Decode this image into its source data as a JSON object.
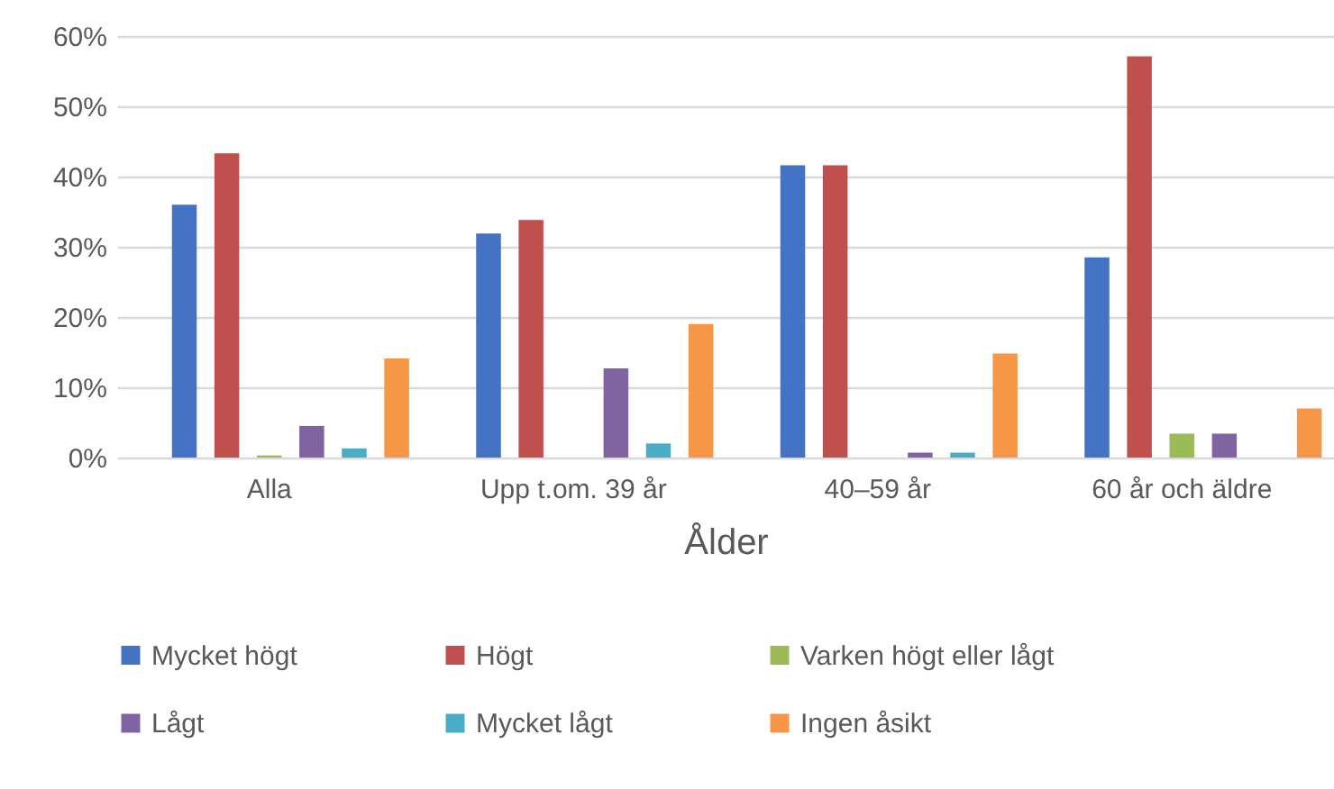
{
  "chart_data": {
    "type": "bar",
    "xlabel": "Ålder",
    "categories": [
      "Alla",
      "Upp t.om. 39 år",
      "40–59 år",
      "60 år och äldre"
    ],
    "series": [
      {
        "name": "Mycket högt",
        "color": "#4472c4",
        "values": [
          36.0,
          31.9,
          41.6,
          28.5
        ]
      },
      {
        "name": "Högt",
        "color": "#c0504d",
        "values": [
          43.3,
          33.8,
          41.6,
          57.1
        ]
      },
      {
        "name": "Varken högt eller lågt",
        "color": "#9bbb59",
        "values": [
          0.3,
          null,
          null,
          3.4
        ]
      },
      {
        "name": "Lågt",
        "color": "#8064a2",
        "values": [
          4.5,
          12.7,
          0.7,
          3.4
        ]
      },
      {
        "name": "Mycket lågt",
        "color": "#4bacc6",
        "values": [
          1.3,
          2.0,
          0.7,
          null
        ]
      },
      {
        "name": "Ingen åsikt",
        "color": "#f79646",
        "values": [
          14.1,
          19.0,
          14.8,
          7.0
        ]
      }
    ],
    "ylim": [
      0,
      60
    ],
    "yticks": [
      {
        "value": 0,
        "label": "0%"
      },
      {
        "value": 10,
        "label": "10%"
      },
      {
        "value": 20,
        "label": "20%"
      },
      {
        "value": 30,
        "label": "30%"
      },
      {
        "value": 40,
        "label": "40%"
      },
      {
        "value": 50,
        "label": "50%"
      },
      {
        "value": 60,
        "label": "60%"
      }
    ],
    "grid": "y",
    "legend": "bottom"
  }
}
